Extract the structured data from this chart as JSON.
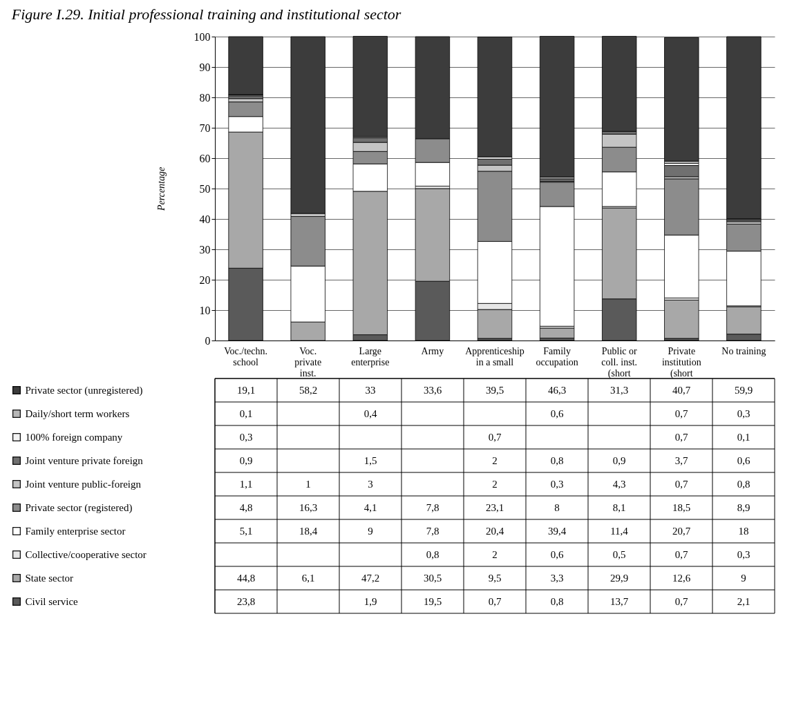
{
  "chart_data": {
    "type": "bar",
    "title": "Figure I.29. Initial professional training and institutional sector",
    "ylabel": "Percentage",
    "stacked": true,
    "ylim": [
      0,
      100
    ],
    "yticks": [
      0,
      10,
      20,
      30,
      40,
      50,
      60,
      70,
      80,
      90,
      100
    ],
    "grid": "y",
    "legend": "left",
    "data_labels": false,
    "categories": [
      "Voc./techn. school",
      "Voc. private inst.",
      "Large enterprise",
      "Army",
      "Apprenticeship in a small",
      "Family occupation",
      "Public or coll. inst. (short",
      "Private institution (short",
      "No training"
    ],
    "series": [
      {
        "name": "Civil service",
        "color": "#5a5a5a",
        "values": [
          23.8,
          null,
          1.9,
          19.5,
          0.7,
          0.8,
          13.7,
          0.7,
          2.1
        ],
        "value_labels": [
          "23,8",
          null,
          "1,9",
          "19,5",
          "0,7",
          "0,8",
          "13,7",
          "0,7",
          "2,1"
        ]
      },
      {
        "name": "State sector",
        "color": "#a8a8a8",
        "values": [
          44.8,
          6.1,
          47.2,
          30.5,
          9.5,
          3.3,
          29.9,
          12.6,
          9
        ],
        "value_labels": [
          "44,8",
          "6,1",
          "47,2",
          "30,5",
          "9,5",
          "3,3",
          "29,9",
          "12,6",
          "9"
        ]
      },
      {
        "name": "Collective/cooperative sector",
        "color": "#e6e6e6",
        "values": [
          null,
          null,
          null,
          0.8,
          2,
          0.6,
          0.5,
          0.7,
          0.3
        ],
        "value_labels": [
          null,
          null,
          null,
          "0,8",
          "2",
          "0,6",
          "0,5",
          "0,7",
          "0,3"
        ]
      },
      {
        "name": "Family enterprise sector",
        "color": "#ffffff",
        "values": [
          5.1,
          18.4,
          9,
          7.8,
          20.4,
          39.4,
          11.4,
          20.7,
          18
        ],
        "value_labels": [
          "5,1",
          "18,4",
          "9",
          "7,8",
          "20,4",
          "39,4",
          "11,4",
          "20,7",
          "18"
        ]
      },
      {
        "name": "Private sector (registered)",
        "color": "#8c8c8c",
        "values": [
          4.8,
          16.3,
          4.1,
          7.8,
          23.1,
          8,
          8.1,
          18.5,
          8.9
        ],
        "value_labels": [
          "4,8",
          "16,3",
          "4,1",
          "7,8",
          "23,1",
          "8",
          "8,1",
          "18,5",
          "8,9"
        ]
      },
      {
        "name": "Joint venture public-foreign",
        "color": "#c4c4c4",
        "values": [
          1.1,
          1,
          3,
          null,
          2,
          0.3,
          4.3,
          0.7,
          0.8
        ],
        "value_labels": [
          "1,1",
          "1",
          "3",
          null,
          "2",
          "0,3",
          "4,3",
          "0,7",
          "0,8"
        ]
      },
      {
        "name": "Joint venture private foreign",
        "color": "#707070",
        "values": [
          0.9,
          null,
          1.5,
          null,
          2,
          0.8,
          0.9,
          3.7,
          0.6
        ],
        "value_labels": [
          "0,9",
          null,
          "1,5",
          null,
          "2",
          "0,8",
          "0,9",
          "3,7",
          "0,6"
        ]
      },
      {
        "name": "100% foreign company",
        "color": "#f4f4f4",
        "values": [
          0.3,
          null,
          null,
          null,
          0.7,
          null,
          null,
          0.7,
          0.1
        ],
        "value_labels": [
          "0,3",
          null,
          null,
          null,
          "0,7",
          null,
          null,
          "0,7",
          "0,1"
        ]
      },
      {
        "name": "Daily/short term workers",
        "color": "#b8b8b8",
        "values": [
          0.1,
          null,
          0.4,
          null,
          null,
          0.6,
          null,
          0.7,
          0.3
        ],
        "value_labels": [
          "0,1",
          null,
          "0,4",
          null,
          null,
          "0,6",
          null,
          "0,7",
          "0,3"
        ]
      },
      {
        "name": "Private sector (unregistered)",
        "color": "#3c3c3c",
        "values": [
          19.1,
          58.2,
          33,
          33.6,
          39.5,
          46.3,
          31.3,
          40.7,
          59.9
        ],
        "value_labels": [
          "19,1",
          "58,2",
          "33",
          "33,6",
          "39,5",
          "46,3",
          "31,3",
          "40,7",
          "59,9"
        ]
      }
    ]
  }
}
